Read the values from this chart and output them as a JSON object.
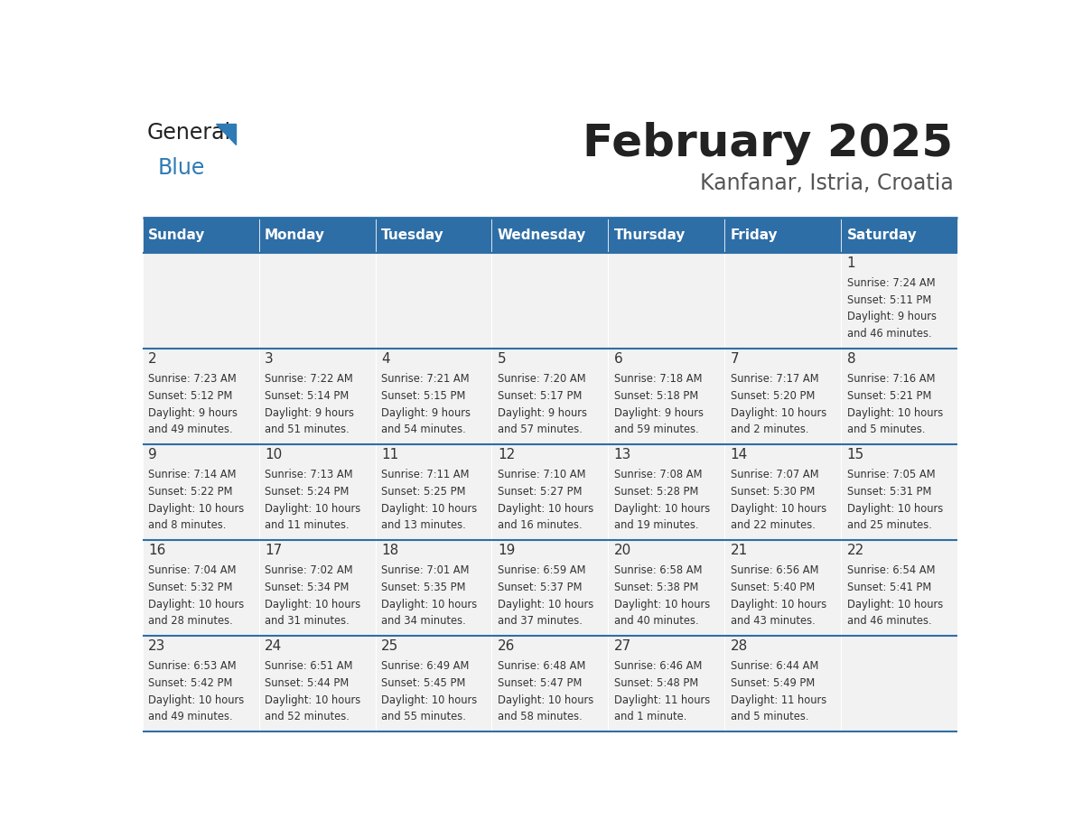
{
  "title": "February 2025",
  "subtitle": "Kanfanar, Istria, Croatia",
  "header_color": "#2E6EA6",
  "header_text_color": "#FFFFFF",
  "day_names": [
    "Sunday",
    "Monday",
    "Tuesday",
    "Wednesday",
    "Thursday",
    "Friday",
    "Saturday"
  ],
  "bg_color": "#FFFFFF",
  "cell_bg": "#F2F2F2",
  "border_color": "#2E6EA6",
  "text_color": "#333333",
  "logo_general_color": "#222222",
  "logo_blue_color": "#2E7BB5",
  "title_color": "#222222",
  "subtitle_color": "#555555",
  "days": [
    {
      "day": 1,
      "col": 6,
      "row": 0,
      "sunrise": "7:24 AM",
      "sunset": "5:11 PM",
      "daylight": "9 hours and 46 minutes."
    },
    {
      "day": 2,
      "col": 0,
      "row": 1,
      "sunrise": "7:23 AM",
      "sunset": "5:12 PM",
      "daylight": "9 hours and 49 minutes."
    },
    {
      "day": 3,
      "col": 1,
      "row": 1,
      "sunrise": "7:22 AM",
      "sunset": "5:14 PM",
      "daylight": "9 hours and 51 minutes."
    },
    {
      "day": 4,
      "col": 2,
      "row": 1,
      "sunrise": "7:21 AM",
      "sunset": "5:15 PM",
      "daylight": "9 hours and 54 minutes."
    },
    {
      "day": 5,
      "col": 3,
      "row": 1,
      "sunrise": "7:20 AM",
      "sunset": "5:17 PM",
      "daylight": "9 hours and 57 minutes."
    },
    {
      "day": 6,
      "col": 4,
      "row": 1,
      "sunrise": "7:18 AM",
      "sunset": "5:18 PM",
      "daylight": "9 hours and 59 minutes."
    },
    {
      "day": 7,
      "col": 5,
      "row": 1,
      "sunrise": "7:17 AM",
      "sunset": "5:20 PM",
      "daylight": "10 hours and 2 minutes."
    },
    {
      "day": 8,
      "col": 6,
      "row": 1,
      "sunrise": "7:16 AM",
      "sunset": "5:21 PM",
      "daylight": "10 hours and 5 minutes."
    },
    {
      "day": 9,
      "col": 0,
      "row": 2,
      "sunrise": "7:14 AM",
      "sunset": "5:22 PM",
      "daylight": "10 hours and 8 minutes."
    },
    {
      "day": 10,
      "col": 1,
      "row": 2,
      "sunrise": "7:13 AM",
      "sunset": "5:24 PM",
      "daylight": "10 hours and 11 minutes."
    },
    {
      "day": 11,
      "col": 2,
      "row": 2,
      "sunrise": "7:11 AM",
      "sunset": "5:25 PM",
      "daylight": "10 hours and 13 minutes."
    },
    {
      "day": 12,
      "col": 3,
      "row": 2,
      "sunrise": "7:10 AM",
      "sunset": "5:27 PM",
      "daylight": "10 hours and 16 minutes."
    },
    {
      "day": 13,
      "col": 4,
      "row": 2,
      "sunrise": "7:08 AM",
      "sunset": "5:28 PM",
      "daylight": "10 hours and 19 minutes."
    },
    {
      "day": 14,
      "col": 5,
      "row": 2,
      "sunrise": "7:07 AM",
      "sunset": "5:30 PM",
      "daylight": "10 hours and 22 minutes."
    },
    {
      "day": 15,
      "col": 6,
      "row": 2,
      "sunrise": "7:05 AM",
      "sunset": "5:31 PM",
      "daylight": "10 hours and 25 minutes."
    },
    {
      "day": 16,
      "col": 0,
      "row": 3,
      "sunrise": "7:04 AM",
      "sunset": "5:32 PM",
      "daylight": "10 hours and 28 minutes."
    },
    {
      "day": 17,
      "col": 1,
      "row": 3,
      "sunrise": "7:02 AM",
      "sunset": "5:34 PM",
      "daylight": "10 hours and 31 minutes."
    },
    {
      "day": 18,
      "col": 2,
      "row": 3,
      "sunrise": "7:01 AM",
      "sunset": "5:35 PM",
      "daylight": "10 hours and 34 minutes."
    },
    {
      "day": 19,
      "col": 3,
      "row": 3,
      "sunrise": "6:59 AM",
      "sunset": "5:37 PM",
      "daylight": "10 hours and 37 minutes."
    },
    {
      "day": 20,
      "col": 4,
      "row": 3,
      "sunrise": "6:58 AM",
      "sunset": "5:38 PM",
      "daylight": "10 hours and 40 minutes."
    },
    {
      "day": 21,
      "col": 5,
      "row": 3,
      "sunrise": "6:56 AM",
      "sunset": "5:40 PM",
      "daylight": "10 hours and 43 minutes."
    },
    {
      "day": 22,
      "col": 6,
      "row": 3,
      "sunrise": "6:54 AM",
      "sunset": "5:41 PM",
      "daylight": "10 hours and 46 minutes."
    },
    {
      "day": 23,
      "col": 0,
      "row": 4,
      "sunrise": "6:53 AM",
      "sunset": "5:42 PM",
      "daylight": "10 hours and 49 minutes."
    },
    {
      "day": 24,
      "col": 1,
      "row": 4,
      "sunrise": "6:51 AM",
      "sunset": "5:44 PM",
      "daylight": "10 hours and 52 minutes."
    },
    {
      "day": 25,
      "col": 2,
      "row": 4,
      "sunrise": "6:49 AM",
      "sunset": "5:45 PM",
      "daylight": "10 hours and 55 minutes."
    },
    {
      "day": 26,
      "col": 3,
      "row": 4,
      "sunrise": "6:48 AM",
      "sunset": "5:47 PM",
      "daylight": "10 hours and 58 minutes."
    },
    {
      "day": 27,
      "col": 4,
      "row": 4,
      "sunrise": "6:46 AM",
      "sunset": "5:48 PM",
      "daylight": "11 hours and 1 minute."
    },
    {
      "day": 28,
      "col": 5,
      "row": 4,
      "sunrise": "6:44 AM",
      "sunset": "5:49 PM",
      "daylight": "11 hours and 5 minutes."
    }
  ]
}
